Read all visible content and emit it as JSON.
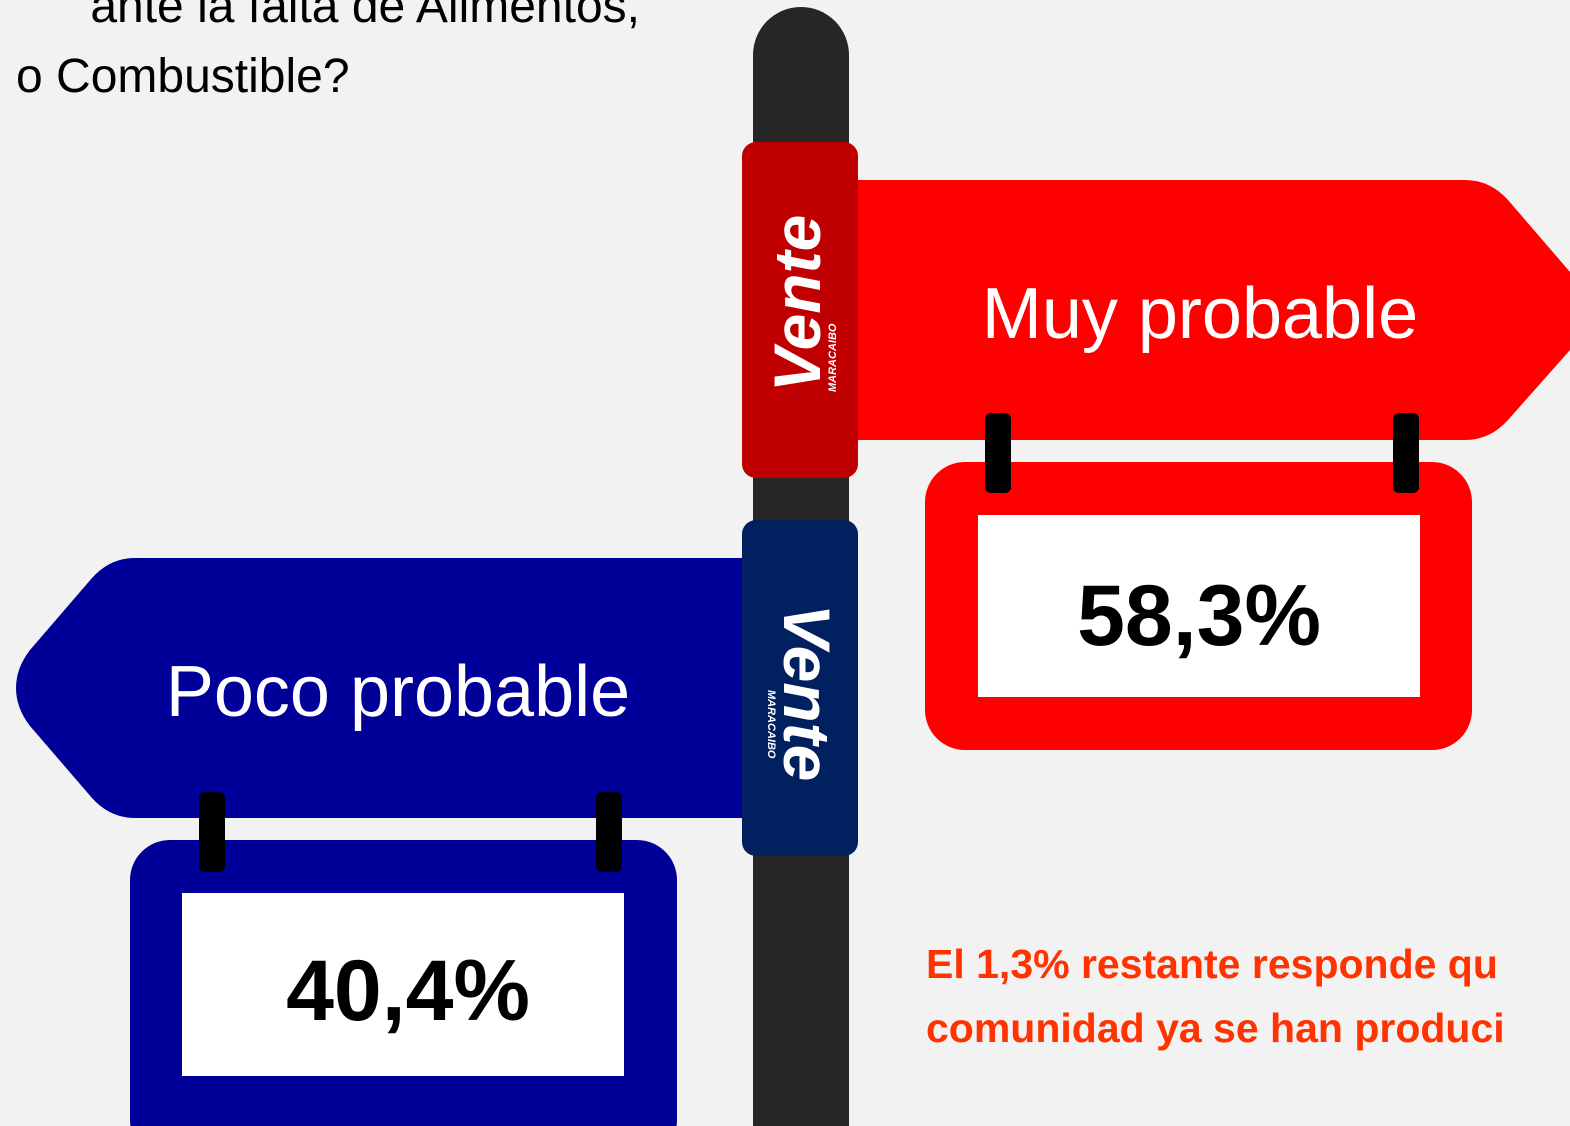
{
  "title": {
    "lines": [
      "ante la falta de Alimentos,",
      "o Combustible?"
    ]
  },
  "signs": [
    {
      "label": "Muy probable",
      "value": "58,3%",
      "logo": "Vente",
      "logo_sub": "MARACAIBO"
    },
    {
      "label": "Poco probable",
      "value": "40,4%",
      "logo": "Vente",
      "logo_sub": "MARACAIBO"
    }
  ],
  "note": {
    "lines": [
      "El 1,3% restante responde qu",
      "comunidad ya se han produci"
    ]
  }
}
